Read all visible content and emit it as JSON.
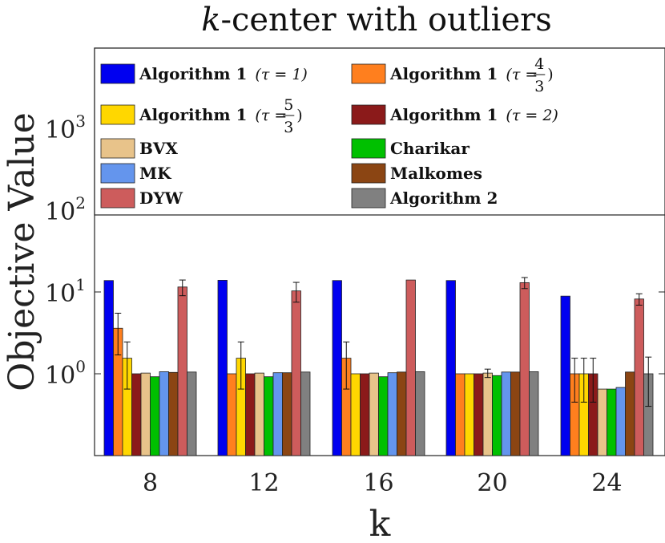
{
  "chart_data": {
    "type": "bar",
    "title_prefix": "k",
    "title_rest": "-center with outliers",
    "xlabel": "k",
    "ylabel": "Objective Value",
    "yscale": "log",
    "ylim": [
      0.1,
      10000
    ],
    "categories": [
      "8",
      "12",
      "16",
      "20",
      "24"
    ],
    "y_tick_labels": [
      {
        "value": 1,
        "base": "10",
        "exp": "0"
      },
      {
        "value": 10,
        "base": "10",
        "exp": "1"
      },
      {
        "value": 100,
        "base": "10",
        "exp": "2"
      },
      {
        "value": 1000,
        "base": "10",
        "exp": "3"
      }
    ],
    "legend_placement": "top",
    "series": [
      {
        "name": "Algorithm 1",
        "param": "(τ = 1)",
        "color": "#0000f0",
        "values": [
          13.8,
          13.9,
          13.8,
          13.8,
          8.9
        ],
        "errors": [
          0,
          0,
          0,
          0,
          0
        ]
      },
      {
        "name": "Algorithm 1",
        "param": "(τ = 4/3)",
        "param_pre": "(τ =",
        "param_num": "4",
        "param_den": "3",
        "param_post": ")",
        "color": "#ff7f1e",
        "values": [
          3.6,
          1.0,
          1.55,
          1.0,
          1.0
        ],
        "errors": [
          1.9,
          0,
          0.9,
          0,
          0.55
        ]
      },
      {
        "name": "Algorithm 1",
        "param": "(τ = 5/3)",
        "param_pre": "(τ =",
        "param_num": "5",
        "param_den": "3",
        "param_post": ")",
        "color": "#ffd700",
        "values": [
          1.55,
          1.55,
          1.0,
          1.0,
          1.0
        ],
        "errors": [
          0.9,
          0.9,
          0,
          0,
          0.55
        ]
      },
      {
        "name": "Algorithm 1",
        "param": "(τ = 2)",
        "color": "#8b1a1a",
        "values": [
          1.0,
          1.0,
          1.0,
          1.0,
          1.0
        ],
        "errors": [
          0,
          0,
          0,
          0,
          0.55
        ]
      },
      {
        "name": "BVX",
        "color": "#e8c38a",
        "values": [
          1.02,
          1.02,
          1.02,
          1.02,
          0.65
        ],
        "errors": [
          0,
          0,
          0,
          0.12,
          0
        ]
      },
      {
        "name": "Charikar",
        "color": "#00c000",
        "values": [
          0.92,
          0.92,
          0.92,
          0.95,
          0.65
        ],
        "errors": [
          0,
          0,
          0,
          0,
          0
        ]
      },
      {
        "name": "MK",
        "color": "#6495ed",
        "values": [
          1.06,
          1.03,
          1.03,
          1.05,
          0.68
        ],
        "errors": [
          0,
          0,
          0,
          0,
          0
        ]
      },
      {
        "name": "Malkomes",
        "color": "#8b4513",
        "values": [
          1.04,
          1.03,
          1.05,
          1.05,
          1.05
        ],
        "errors": [
          0,
          0,
          0,
          0,
          0
        ]
      },
      {
        "name": "DYW",
        "color": "#cd5c5c",
        "values": [
          11.5,
          10.3,
          14.0,
          13.0,
          8.2
        ],
        "errors": [
          2.5,
          2.8,
          0,
          2.0,
          1.3
        ]
      },
      {
        "name": "Algorithm 2",
        "color": "#808080",
        "values": [
          1.05,
          1.05,
          1.06,
          1.06,
          1.0
        ],
        "errors": [
          0,
          0,
          0,
          0,
          0.6
        ]
      }
    ]
  }
}
